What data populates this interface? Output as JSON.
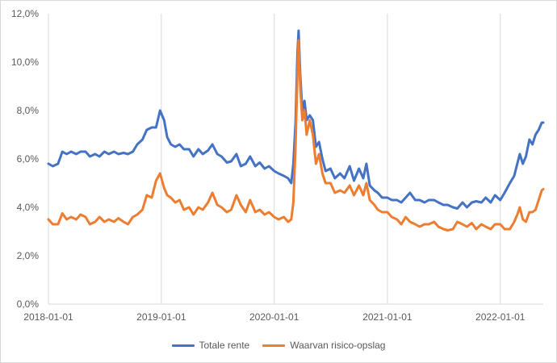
{
  "chart_data": {
    "type": "line",
    "title": "",
    "xlabel": "",
    "ylabel": "",
    "x_range": [
      "2018-01-01",
      "2022-05-20"
    ],
    "ylim": [
      0,
      12
    ],
    "y_ticks": [
      "0,0%",
      "2,0%",
      "4,0%",
      "6,0%",
      "8,0%",
      "10,0%",
      "12,0%"
    ],
    "x_ticks": [
      "2018-01-01",
      "2019-01-01",
      "2020-01-01",
      "2021-01-01",
      "2022-01-01"
    ],
    "grid": "vertical",
    "legend_position": "bottom",
    "series": [
      {
        "name": "Totale rente",
        "color": "#4472C4",
        "points": [
          [
            "2018-01-01",
            5.8
          ],
          [
            "2018-01-15",
            5.7
          ],
          [
            "2018-02-01",
            5.8
          ],
          [
            "2018-02-15",
            6.3
          ],
          [
            "2018-03-01",
            6.2
          ],
          [
            "2018-03-15",
            6.3
          ],
          [
            "2018-04-01",
            6.2
          ],
          [
            "2018-04-15",
            6.3
          ],
          [
            "2018-05-01",
            6.3
          ],
          [
            "2018-05-15",
            6.1
          ],
          [
            "2018-06-01",
            6.2
          ],
          [
            "2018-06-15",
            6.1
          ],
          [
            "2018-07-01",
            6.3
          ],
          [
            "2018-07-15",
            6.2
          ],
          [
            "2018-08-01",
            6.3
          ],
          [
            "2018-08-15",
            6.2
          ],
          [
            "2018-09-01",
            6.25
          ],
          [
            "2018-09-15",
            6.2
          ],
          [
            "2018-10-01",
            6.3
          ],
          [
            "2018-10-15",
            6.6
          ],
          [
            "2018-11-01",
            6.8
          ],
          [
            "2018-11-15",
            7.2
          ],
          [
            "2018-12-01",
            7.3
          ],
          [
            "2018-12-15",
            7.3
          ],
          [
            "2018-12-28",
            8.0
          ],
          [
            "2019-01-10",
            7.6
          ],
          [
            "2019-01-20",
            6.9
          ],
          [
            "2019-02-01",
            6.6
          ],
          [
            "2019-02-15",
            6.5
          ],
          [
            "2019-03-01",
            6.6
          ],
          [
            "2019-03-15",
            6.4
          ],
          [
            "2019-04-01",
            6.4
          ],
          [
            "2019-04-15",
            6.1
          ],
          [
            "2019-05-01",
            6.4
          ],
          [
            "2019-05-15",
            6.2
          ],
          [
            "2019-06-01",
            6.35
          ],
          [
            "2019-06-15",
            6.6
          ],
          [
            "2019-07-01",
            6.2
          ],
          [
            "2019-07-15",
            6.1
          ],
          [
            "2019-08-01",
            5.85
          ],
          [
            "2019-08-15",
            5.9
          ],
          [
            "2019-09-01",
            6.2
          ],
          [
            "2019-09-15",
            5.7
          ],
          [
            "2019-10-01",
            5.8
          ],
          [
            "2019-10-15",
            6.1
          ],
          [
            "2019-11-01",
            5.7
          ],
          [
            "2019-11-15",
            5.85
          ],
          [
            "2019-12-01",
            5.6
          ],
          [
            "2019-12-15",
            5.7
          ],
          [
            "2020-01-01",
            5.5
          ],
          [
            "2020-01-15",
            5.4
          ],
          [
            "2020-02-01",
            5.3
          ],
          [
            "2020-02-15",
            5.2
          ],
          [
            "2020-02-25",
            5.0
          ],
          [
            "2020-03-03",
            5.8
          ],
          [
            "2020-03-10",
            7.5
          ],
          [
            "2020-03-16",
            10.3
          ],
          [
            "2020-03-20",
            11.3
          ],
          [
            "2020-03-25",
            9.5
          ],
          [
            "2020-04-01",
            8.0
          ],
          [
            "2020-04-08",
            8.4
          ],
          [
            "2020-04-15",
            7.6
          ],
          [
            "2020-04-25",
            7.8
          ],
          [
            "2020-05-05",
            7.6
          ],
          [
            "2020-05-15",
            6.5
          ],
          [
            "2020-05-25",
            6.7
          ],
          [
            "2020-06-05",
            6.0
          ],
          [
            "2020-06-15",
            5.5
          ],
          [
            "2020-07-01",
            5.6
          ],
          [
            "2020-07-15",
            5.2
          ],
          [
            "2020-08-01",
            5.4
          ],
          [
            "2020-08-15",
            5.2
          ],
          [
            "2020-09-01",
            5.7
          ],
          [
            "2020-09-15",
            5.1
          ],
          [
            "2020-10-01",
            5.6
          ],
          [
            "2020-10-15",
            5.2
          ],
          [
            "2020-10-25",
            5.8
          ],
          [
            "2020-11-05",
            4.9
          ],
          [
            "2020-11-20",
            4.7
          ],
          [
            "2020-12-01",
            4.6
          ],
          [
            "2020-12-15",
            4.4
          ],
          [
            "2021-01-01",
            4.4
          ],
          [
            "2021-01-15",
            4.3
          ],
          [
            "2021-02-01",
            4.3
          ],
          [
            "2021-02-15",
            4.2
          ],
          [
            "2021-03-01",
            4.4
          ],
          [
            "2021-03-15",
            4.6
          ],
          [
            "2021-04-01",
            4.3
          ],
          [
            "2021-04-15",
            4.3
          ],
          [
            "2021-05-01",
            4.2
          ],
          [
            "2021-05-15",
            4.3
          ],
          [
            "2021-06-01",
            4.3
          ],
          [
            "2021-06-15",
            4.2
          ],
          [
            "2021-07-01",
            4.1
          ],
          [
            "2021-07-15",
            4.1
          ],
          [
            "2021-08-01",
            4.0
          ],
          [
            "2021-08-15",
            3.95
          ],
          [
            "2021-09-01",
            4.2
          ],
          [
            "2021-09-15",
            4.0
          ],
          [
            "2021-10-01",
            4.2
          ],
          [
            "2021-10-15",
            4.25
          ],
          [
            "2021-11-01",
            4.2
          ],
          [
            "2021-11-15",
            4.4
          ],
          [
            "2021-12-01",
            4.2
          ],
          [
            "2021-12-15",
            4.5
          ],
          [
            "2022-01-01",
            4.3
          ],
          [
            "2022-01-15",
            4.6
          ],
          [
            "2022-02-01",
            5.0
          ],
          [
            "2022-02-15",
            5.3
          ],
          [
            "2022-02-25",
            5.8
          ],
          [
            "2022-03-05",
            6.2
          ],
          [
            "2022-03-15",
            5.8
          ],
          [
            "2022-03-25",
            6.1
          ],
          [
            "2022-04-05",
            6.8
          ],
          [
            "2022-04-15",
            6.6
          ],
          [
            "2022-04-25",
            7.0
          ],
          [
            "2022-05-05",
            7.2
          ],
          [
            "2022-05-15",
            7.5
          ],
          [
            "2022-05-20",
            7.5
          ]
        ]
      },
      {
        "name": "Waarvan risico-opslag",
        "color": "#ED7D31",
        "points": [
          [
            "2018-01-01",
            3.5
          ],
          [
            "2018-01-15",
            3.3
          ],
          [
            "2018-02-01",
            3.3
          ],
          [
            "2018-02-15",
            3.75
          ],
          [
            "2018-03-01",
            3.5
          ],
          [
            "2018-03-15",
            3.6
          ],
          [
            "2018-04-01",
            3.5
          ],
          [
            "2018-04-15",
            3.7
          ],
          [
            "2018-05-01",
            3.6
          ],
          [
            "2018-05-15",
            3.3
          ],
          [
            "2018-06-01",
            3.4
          ],
          [
            "2018-06-15",
            3.6
          ],
          [
            "2018-07-01",
            3.4
          ],
          [
            "2018-07-15",
            3.5
          ],
          [
            "2018-08-01",
            3.4
          ],
          [
            "2018-08-15",
            3.55
          ],
          [
            "2018-09-01",
            3.4
          ],
          [
            "2018-09-15",
            3.3
          ],
          [
            "2018-10-01",
            3.6
          ],
          [
            "2018-10-15",
            3.7
          ],
          [
            "2018-11-01",
            3.9
          ],
          [
            "2018-11-15",
            4.5
          ],
          [
            "2018-12-01",
            4.4
          ],
          [
            "2018-12-15",
            5.1
          ],
          [
            "2018-12-28",
            5.4
          ],
          [
            "2019-01-10",
            4.8
          ],
          [
            "2019-01-20",
            4.5
          ],
          [
            "2019-02-01",
            4.4
          ],
          [
            "2019-02-15",
            4.2
          ],
          [
            "2019-03-01",
            4.3
          ],
          [
            "2019-03-15",
            3.9
          ],
          [
            "2019-04-01",
            4.0
          ],
          [
            "2019-04-15",
            3.7
          ],
          [
            "2019-05-01",
            4.0
          ],
          [
            "2019-05-15",
            3.9
          ],
          [
            "2019-06-01",
            4.2
          ],
          [
            "2019-06-15",
            4.6
          ],
          [
            "2019-07-01",
            4.1
          ],
          [
            "2019-07-15",
            4.0
          ],
          [
            "2019-08-01",
            3.8
          ],
          [
            "2019-08-15",
            3.9
          ],
          [
            "2019-09-01",
            4.5
          ],
          [
            "2019-09-15",
            4.1
          ],
          [
            "2019-10-01",
            3.8
          ],
          [
            "2019-10-15",
            4.3
          ],
          [
            "2019-11-01",
            3.8
          ],
          [
            "2019-11-15",
            3.9
          ],
          [
            "2019-12-01",
            3.7
          ],
          [
            "2019-12-15",
            3.8
          ],
          [
            "2020-01-01",
            3.6
          ],
          [
            "2020-01-15",
            3.5
          ],
          [
            "2020-02-01",
            3.6
          ],
          [
            "2020-02-15",
            3.4
          ],
          [
            "2020-02-25",
            3.5
          ],
          [
            "2020-03-03",
            4.2
          ],
          [
            "2020-03-10",
            6.5
          ],
          [
            "2020-03-16",
            9.5
          ],
          [
            "2020-03-20",
            10.9
          ],
          [
            "2020-03-25",
            9.0
          ],
          [
            "2020-04-01",
            7.6
          ],
          [
            "2020-04-08",
            8.0
          ],
          [
            "2020-04-15",
            7.0
          ],
          [
            "2020-04-25",
            7.6
          ],
          [
            "2020-05-05",
            7.0
          ],
          [
            "2020-05-15",
            5.8
          ],
          [
            "2020-05-25",
            6.2
          ],
          [
            "2020-06-05",
            5.4
          ],
          [
            "2020-06-15",
            5.0
          ],
          [
            "2020-07-01",
            5.0
          ],
          [
            "2020-07-15",
            4.6
          ],
          [
            "2020-08-01",
            4.7
          ],
          [
            "2020-08-15",
            4.6
          ],
          [
            "2020-09-01",
            4.9
          ],
          [
            "2020-09-15",
            4.5
          ],
          [
            "2020-10-01",
            4.9
          ],
          [
            "2020-10-15",
            4.5
          ],
          [
            "2020-10-25",
            5.0
          ],
          [
            "2020-11-05",
            4.3
          ],
          [
            "2020-11-20",
            4.1
          ],
          [
            "2020-12-01",
            3.9
          ],
          [
            "2020-12-15",
            3.8
          ],
          [
            "2021-01-01",
            3.8
          ],
          [
            "2021-01-15",
            3.6
          ],
          [
            "2021-02-01",
            3.5
          ],
          [
            "2021-02-15",
            3.3
          ],
          [
            "2021-03-01",
            3.6
          ],
          [
            "2021-03-15",
            3.4
          ],
          [
            "2021-04-01",
            3.3
          ],
          [
            "2021-04-15",
            3.2
          ],
          [
            "2021-05-01",
            3.3
          ],
          [
            "2021-05-15",
            3.3
          ],
          [
            "2021-06-01",
            3.4
          ],
          [
            "2021-06-15",
            3.2
          ],
          [
            "2021-07-01",
            3.1
          ],
          [
            "2021-07-15",
            3.05
          ],
          [
            "2021-08-01",
            3.1
          ],
          [
            "2021-08-15",
            3.4
          ],
          [
            "2021-09-01",
            3.3
          ],
          [
            "2021-09-15",
            3.2
          ],
          [
            "2021-10-01",
            3.35
          ],
          [
            "2021-10-15",
            3.1
          ],
          [
            "2021-11-01",
            3.3
          ],
          [
            "2021-11-15",
            3.2
          ],
          [
            "2021-12-01",
            3.1
          ],
          [
            "2021-12-15",
            3.3
          ],
          [
            "2022-01-01",
            3.3
          ],
          [
            "2022-01-15",
            3.1
          ],
          [
            "2022-02-01",
            3.1
          ],
          [
            "2022-02-15",
            3.4
          ],
          [
            "2022-02-25",
            3.7
          ],
          [
            "2022-03-05",
            4.0
          ],
          [
            "2022-03-15",
            3.5
          ],
          [
            "2022-03-25",
            3.4
          ],
          [
            "2022-04-05",
            3.8
          ],
          [
            "2022-04-15",
            3.8
          ],
          [
            "2022-04-25",
            3.9
          ],
          [
            "2022-05-05",
            4.3
          ],
          [
            "2022-05-15",
            4.7
          ],
          [
            "2022-05-20",
            4.75
          ]
        ]
      }
    ]
  }
}
